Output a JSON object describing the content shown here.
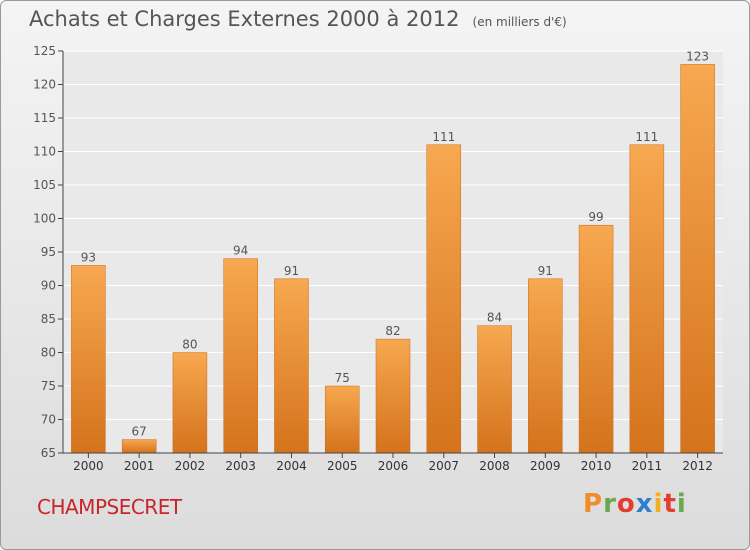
{
  "header": {
    "title": "Achats et Charges Externes 2000 à 2012",
    "subtitle": "(en milliers d'€)"
  },
  "footer": {
    "town": "CHAMPSECRET",
    "logo_text": "Proxiti",
    "logo_colors": [
      "#f28c28",
      "#6aa84f",
      "#e43c2f",
      "#2f7fd1",
      "#f2b01e",
      "#e43c2f",
      "#6aa84f"
    ]
  },
  "colors": {
    "bar_light": "#f7a850",
    "bar_dark": "#d4731c",
    "plot_bg": "#e9e9e9",
    "grid": "#ffffff",
    "text": "#555555",
    "town": "#c8252b"
  },
  "chart_data": {
    "type": "bar",
    "title": "Achats et Charges Externes 2000 à 2012",
    "subtitle": "(en milliers d'€)",
    "categories": [
      "2000",
      "2001",
      "2002",
      "2003",
      "2004",
      "2005",
      "2006",
      "2007",
      "2008",
      "2009",
      "2010",
      "2011",
      "2012"
    ],
    "values": [
      93,
      67,
      80,
      94,
      91,
      75,
      82,
      111,
      84,
      91,
      99,
      111,
      123
    ],
    "ylim": [
      65,
      125
    ],
    "yticks": [
      65,
      70,
      75,
      80,
      85,
      90,
      95,
      100,
      105,
      110,
      115,
      120,
      125
    ],
    "grid": true,
    "data_labels": true
  }
}
